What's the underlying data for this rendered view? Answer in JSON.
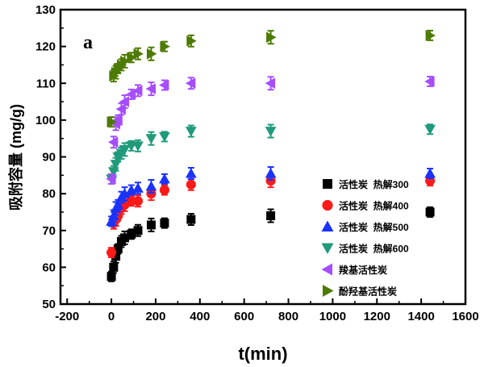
{
  "chart_data": {
    "type": "scatter",
    "annotation": "a",
    "xlabel": "t(min)",
    "ylabel": "吸附容量 (mg/g)",
    "xlim": [
      -230,
      1600
    ],
    "ylim": [
      50,
      130
    ],
    "xticks": [
      -200,
      0,
      200,
      400,
      600,
      800,
      1000,
      1200,
      1400,
      1600
    ],
    "yticks": [
      50,
      60,
      70,
      80,
      90,
      100,
      110,
      120,
      130
    ],
    "grid": false,
    "legend_position": "bottom-right",
    "x": [
      0,
      10,
      20,
      30,
      45,
      60,
      90,
      120,
      180,
      240,
      360,
      720,
      1440
    ],
    "series": [
      {
        "name": "活性炭  热解300",
        "marker": "square",
        "color": "#000000",
        "values": [
          57.5,
          60,
          63,
          65,
          67,
          68,
          69,
          70,
          71.5,
          72,
          73,
          74,
          75
        ]
      },
      {
        "name": "活性炭  热解400",
        "marker": "circle",
        "color": "#ff1a1a",
        "values": [
          64,
          72,
          73,
          74,
          76,
          77,
          78,
          78,
          80,
          81,
          82.5,
          83.5,
          83.5
        ]
      },
      {
        "name": "活性炭  热解500",
        "marker": "triangle-up",
        "color": "#1a33ff",
        "values": [
          72.5,
          74,
          76,
          77,
          79,
          80,
          81,
          81.5,
          82,
          84,
          85.5,
          85.5,
          85.5
        ]
      },
      {
        "name": "活性炭  热解600",
        "marker": "triangle-down",
        "color": "#1f9a7a",
        "values": [
          84,
          86,
          88,
          90,
          91,
          92,
          93,
          93,
          95,
          95.5,
          97,
          97,
          97.5
        ]
      },
      {
        "name": "羧基活性炭",
        "marker": "triangle-left",
        "color": "#a64dff",
        "values": [
          84,
          94,
          99,
          100,
          103,
          105,
          107,
          108,
          108.5,
          109.5,
          110,
          110,
          110.5
        ]
      },
      {
        "name": "酚羟基活性炭",
        "marker": "triangle-right",
        "color": "#4d7a00",
        "values": [
          99.5,
          112,
          113,
          114,
          115,
          116,
          117,
          118,
          118,
          120,
          121.5,
          122.5,
          123
        ]
      }
    ]
  }
}
